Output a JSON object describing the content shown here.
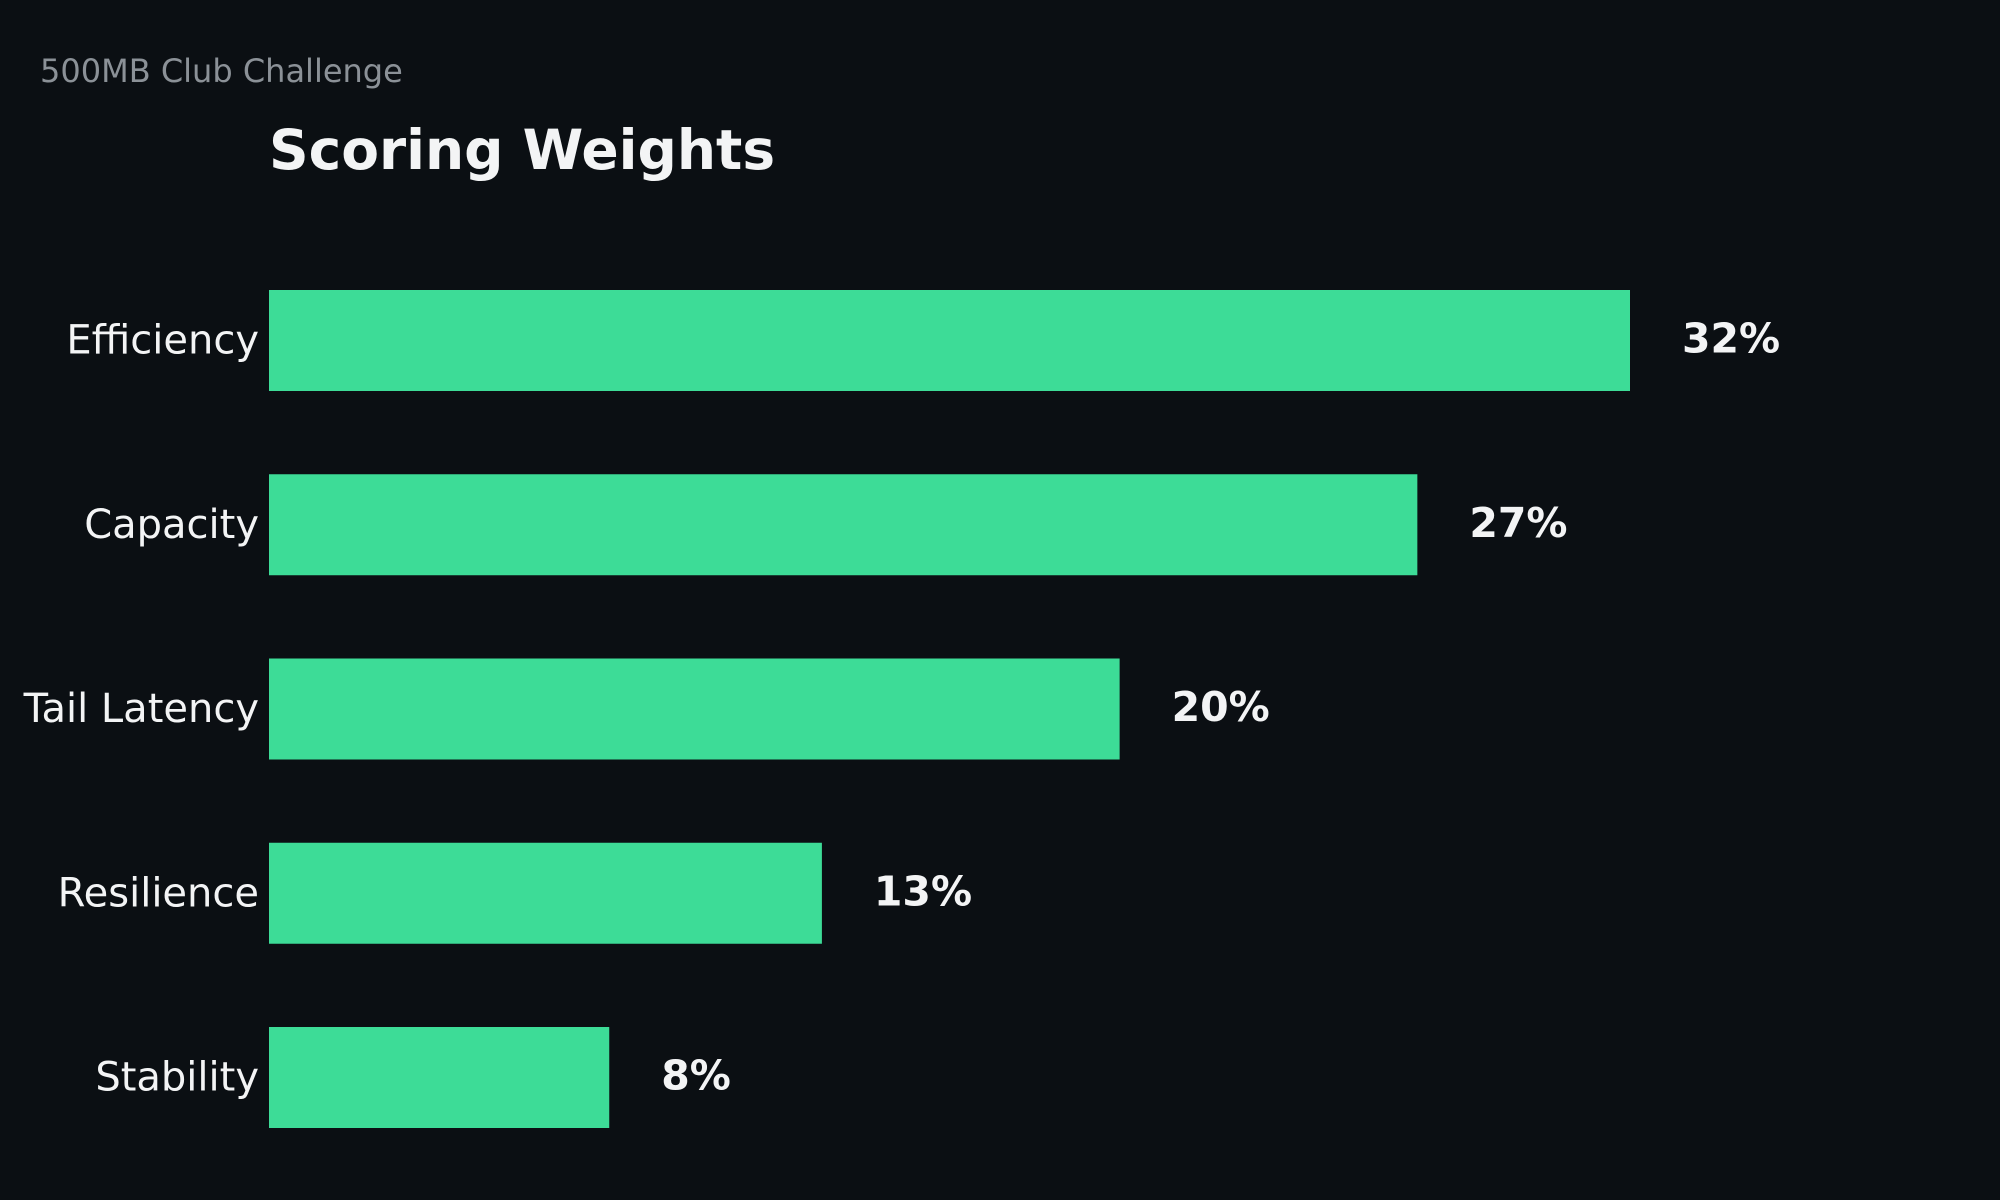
{
  "header": {
    "supertitle": "500MB Club Challenge",
    "title": "Scoring Weights"
  },
  "colors": {
    "background": "#0b0f13",
    "bar": "#3ddc97",
    "label": "#f3f4f5",
    "muted": "#8b9197"
  },
  "chart_data": {
    "type": "bar",
    "orientation": "horizontal",
    "title": "Scoring Weights",
    "categories": [
      "Efficiency",
      "Capacity",
      "Tail Latency",
      "Resilience",
      "Stability"
    ],
    "values": [
      32,
      27,
      20,
      13,
      8
    ],
    "value_labels": [
      "32%",
      "27%",
      "20%",
      "13%",
      "8%"
    ],
    "xlabel": "",
    "ylabel": "",
    "grid": false,
    "legend": "none"
  }
}
